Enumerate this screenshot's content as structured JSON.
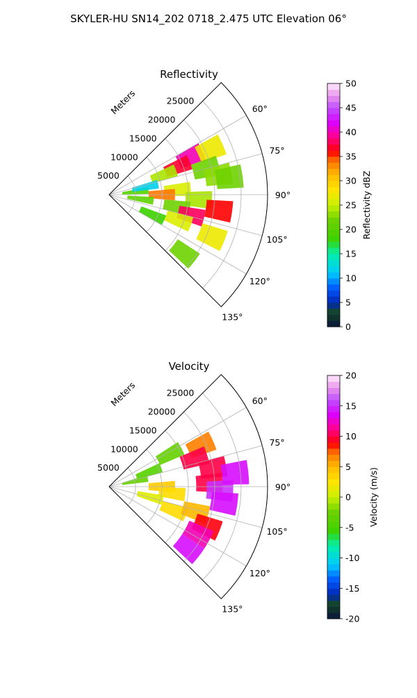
{
  "figure": {
    "suptitle": "SKYLER-HU  SN14_202  0718_2.475 UTC Elevation 06°"
  },
  "chart_data": [
    {
      "type": "heatmap",
      "subtype": "polar-sector",
      "title": "Reflectivity",
      "radial_label": "Meters",
      "radial_ticks": [
        5000,
        10000,
        15000,
        20000,
        25000
      ],
      "rlim": [
        0,
        30000
      ],
      "angle_ticks": [
        "60°",
        "75°",
        "90°",
        "105°",
        "120°",
        "135°"
      ],
      "angle_values": [
        60,
        75,
        90,
        105,
        120,
        135
      ],
      "theta_range": [
        45,
        135
      ],
      "grid": true,
      "colorbar": {
        "label": "Reflectivity dBZ",
        "ticks": [
          0,
          5,
          10,
          15,
          20,
          25,
          30,
          35,
          40,
          45,
          50
        ],
        "range": [
          0,
          50
        ]
      },
      "echoes": [
        {
          "az": 65,
          "r": 17000,
          "dbz": 40
        },
        {
          "az": 68,
          "r": 14000,
          "dbz": 37
        },
        {
          "az": 66,
          "r": 21000,
          "dbz": 27
        },
        {
          "az": 70,
          "r": 11000,
          "dbz": 24
        },
        {
          "az": 75,
          "r": 19000,
          "dbz": 22
        },
        {
          "az": 80,
          "r": 21000,
          "dbz": 23
        },
        {
          "az": 86,
          "r": 13000,
          "dbz": 26
        },
        {
          "az": 90,
          "r": 10000,
          "dbz": 34
        },
        {
          "az": 93,
          "r": 17000,
          "dbz": 24
        },
        {
          "az": 100,
          "r": 13000,
          "dbz": 22
        },
        {
          "az": 104,
          "r": 16000,
          "dbz": 38
        },
        {
          "az": 98,
          "r": 21000,
          "dbz": 36
        },
        {
          "az": 110,
          "r": 14000,
          "dbz": 26
        },
        {
          "az": 84,
          "r": 5000,
          "dbz": 20
        },
        {
          "az": 98,
          "r": 6000,
          "dbz": 21
        },
        {
          "az": 78,
          "r": 7000,
          "dbz": 12
        },
        {
          "az": 115,
          "r": 9000,
          "dbz": 18
        },
        {
          "az": 112,
          "r": 21000,
          "dbz": 27
        },
        {
          "az": 128,
          "r": 18000,
          "dbz": 22
        },
        {
          "az": 82,
          "r": 23000,
          "dbz": 22
        }
      ]
    },
    {
      "type": "heatmap",
      "subtype": "polar-sector",
      "title": "Velocity",
      "radial_label": "Meters",
      "radial_ticks": [
        5000,
        10000,
        15000,
        20000,
        25000
      ],
      "rlim": [
        0,
        30000
      ],
      "angle_ticks": [
        "60°",
        "75°",
        "90°",
        "105°",
        "120°",
        "135°"
      ],
      "angle_values": [
        60,
        75,
        90,
        105,
        120,
        135
      ],
      "theta_range": [
        45,
        135
      ],
      "grid": true,
      "colorbar": {
        "label": "Velocity (m/s)",
        "ticks": [
          -20,
          -15,
          -10,
          -5,
          0,
          5,
          10,
          15,
          20
        ],
        "range": [
          -20,
          20
        ]
      },
      "echoes": [
        {
          "az": 62,
          "r": 13000,
          "v": -3
        },
        {
          "az": 70,
          "r": 8000,
          "v": -4
        },
        {
          "az": 78,
          "r": 5000,
          "v": -3
        },
        {
          "az": 66,
          "r": 19000,
          "v": 7
        },
        {
          "az": 72,
          "r": 17000,
          "v": 10
        },
        {
          "az": 80,
          "r": 20000,
          "v": 10
        },
        {
          "az": 88,
          "r": 19000,
          "v": 10
        },
        {
          "az": 92,
          "r": 21000,
          "v": 15
        },
        {
          "az": 98,
          "r": 22000,
          "v": 14
        },
        {
          "az": 90,
          "r": 10000,
          "v": 4
        },
        {
          "az": 96,
          "r": 12000,
          "v": 3
        },
        {
          "az": 104,
          "r": 8000,
          "v": 1
        },
        {
          "az": 110,
          "r": 13000,
          "v": 3
        },
        {
          "az": 106,
          "r": 17000,
          "v": 5
        },
        {
          "az": 112,
          "r": 20000,
          "v": 9
        },
        {
          "az": 84,
          "r": 24000,
          "v": 14
        },
        {
          "az": 118,
          "r": 19000,
          "v": 12
        },
        {
          "az": 128,
          "r": 19000,
          "v": 14
        }
      ]
    }
  ]
}
